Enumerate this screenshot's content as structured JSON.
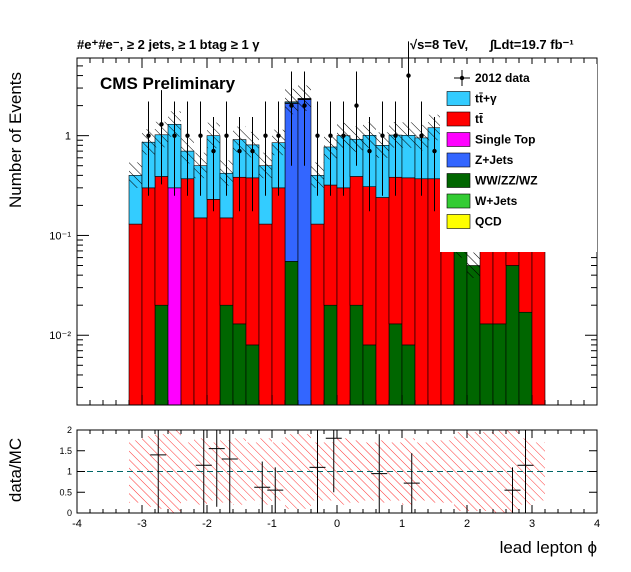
{
  "header": {
    "channel": "#e⁺#e⁻, ≥ 2 jets, ≥ 1 btag ≥ 1 γ",
    "energy": "√s=8 TeV,",
    "lumi": "∫Ldt=19.7 fb⁻¹",
    "cms_label": "CMS Preliminary"
  },
  "chart_data": [
    {
      "type": "bar",
      "stacked": true,
      "log_y": true,
      "xlabel": "",
      "ylabel": "Number of Events",
      "xlim": [
        -4,
        4
      ],
      "ylim": [
        0.002,
        6
      ],
      "x_ticks": [
        "-4",
        "-3",
        "-2",
        "-1",
        "0",
        "1",
        "2",
        "3",
        "4"
      ],
      "y_ticks": [
        "10⁻²",
        "10⁻¹",
        "1"
      ],
      "bin_edges_range": [
        -3.2,
        3.2
      ],
      "n_bins": 32,
      "series": [
        {
          "name": "W+Jets",
          "color": "#33cc33",
          "values": []
        },
        {
          "name": "QCD",
          "color": "#ffff00",
          "values": []
        },
        {
          "name": "WW/ZZ/WZ",
          "color": "#006600",
          "values": [
            0,
            0,
            0.02,
            0,
            0,
            0,
            0,
            0.02,
            0.013,
            0.008,
            0,
            0,
            0.055,
            0,
            0,
            0.02,
            0,
            0.02,
            0.008,
            0,
            0.013,
            0.008,
            0,
            0,
            0,
            0.08,
            0.05,
            0.013,
            0.013,
            0.05,
            0.017,
            0
          ]
        },
        {
          "name": "Z+Jets",
          "color": "#3366ff",
          "values": [
            0,
            0,
            0,
            0,
            0,
            0,
            0,
            0,
            0,
            0,
            0,
            0,
            2.05,
            2.3,
            0,
            0,
            0,
            0,
            0,
            0,
            0,
            0,
            0,
            0,
            0,
            0,
            0,
            0,
            0,
            0,
            0,
            0
          ]
        },
        {
          "name": "Single Top",
          "color": "#ff00ff",
          "values": [
            0,
            0,
            0,
            0.3,
            0,
            0,
            0,
            0,
            0,
            0,
            0,
            0,
            0,
            0,
            0,
            0,
            0,
            0,
            0,
            0,
            0,
            0,
            0,
            0,
            0,
            0,
            0,
            0,
            0,
            0,
            0,
            0
          ]
        },
        {
          "name": "tt̄",
          "color": "#ff0000",
          "values": [
            0.13,
            0.3,
            0.37,
            0,
            0.37,
            0.15,
            0.23,
            0.13,
            0.37,
            0.37,
            0.13,
            0.3,
            0.03,
            0.03,
            0.13,
            0.3,
            0.3,
            0.37,
            0.3,
            0.24,
            0.37,
            0.37,
            0.37,
            0.37,
            0.17,
            0,
            0,
            0.23,
            0.17,
            0.37,
            0.23,
            0.13
          ]
        },
        {
          "name": "tt̄+γ",
          "color": "#33ccff",
          "values": [
            0.27,
            0.56,
            0.63,
            1.0,
            0.33,
            0.35,
            0.77,
            0.27,
            0.53,
            0.43,
            0.37,
            0.55,
            0.05,
            0.03,
            0.27,
            0.45,
            0.7,
            0.53,
            0.7,
            0.56,
            0.63,
            0.63,
            0.58,
            0.83,
            0.23,
            0,
            0,
            0.47,
            0.43,
            0.73,
            0.37,
            0.27
          ]
        }
      ],
      "data_series": {
        "name": "2012 data",
        "points": [
          {
            "bin": 0,
            "y": 0
          },
          {
            "bin": 1,
            "y": 1.0
          },
          {
            "bin": 2,
            "y": 1.3
          },
          {
            "bin": 3,
            "y": 1.0
          },
          {
            "bin": 4,
            "y": 1.0
          },
          {
            "bin": 5,
            "y": 1.0
          },
          {
            "bin": 6,
            "y": 0.7
          },
          {
            "bin": 7,
            "y": 1.0
          },
          {
            "bin": 8,
            "y": 0.7
          },
          {
            "bin": 9,
            "y": 0.7
          },
          {
            "bin": 10,
            "y": 1.0
          },
          {
            "bin": 11,
            "y": 1.0
          },
          {
            "bin": 12,
            "y": 2.0
          },
          {
            "bin": 13,
            "y": 2.0
          },
          {
            "bin": 14,
            "y": 1.0
          },
          {
            "bin": 15,
            "y": 1.0
          },
          {
            "bin": 16,
            "y": 1.0
          },
          {
            "bin": 17,
            "y": 2.0
          },
          {
            "bin": 18,
            "y": 0.7
          },
          {
            "bin": 19,
            "y": 1.0
          },
          {
            "bin": 20,
            "y": 1.0
          },
          {
            "bin": 21,
            "y": 4.0
          },
          {
            "bin": 22,
            "y": 1.0
          },
          {
            "bin": 23,
            "y": 0.7
          },
          {
            "bin": 24,
            "y": 0
          },
          {
            "bin": 25,
            "y": 0
          },
          {
            "bin": 26,
            "y": 0
          },
          {
            "bin": 27,
            "y": 0
          },
          {
            "bin": 28,
            "y": 0
          },
          {
            "bin": 29,
            "y": 0
          },
          {
            "bin": 30,
            "y": 0
          },
          {
            "bin": 31,
            "y": 0
          }
        ]
      },
      "legend": {
        "placement": "top-right",
        "entries": [
          "2012 data",
          "tt̄+γ",
          "tt̄",
          "Single Top",
          "Z+Jets",
          "WW/ZZ/WZ",
          "W+Jets",
          "QCD"
        ]
      }
    },
    {
      "type": "scatter",
      "xlabel": "lead lepton ϕ",
      "ylabel": "data/MC",
      "xlim": [
        -4,
        4
      ],
      "ylim": [
        0,
        2
      ],
      "x_ticks": [
        "-4",
        "-3",
        "-2",
        "-1",
        "0",
        "1",
        "2",
        "3",
        "4"
      ],
      "y_ticks": [
        "0",
        "0.5",
        "1",
        "1.5",
        "2"
      ],
      "reference_line": 1,
      "band_color": "#ff3333",
      "band_halfwidth": [
        0.75,
        0.85,
        0.9,
        1.4,
        0.7,
        0.8,
        0.7,
        0.75,
        0.8,
        0.7,
        0.8,
        0.7,
        0.9,
        0.9,
        0.7,
        0.7,
        0.8,
        0.75,
        0.7,
        0.75,
        0.7,
        0.8,
        0.7,
        0.75,
        0.75,
        0.95,
        0.95,
        0.95,
        1.1,
        1.0,
        0.8,
        0.7
      ],
      "points": [
        {
          "x": -2.75,
          "y": 1.4,
          "err": 1.4
        },
        {
          "x": -2.05,
          "y": 1.15,
          "err": 1.15
        },
        {
          "x": -1.85,
          "y": 1.55,
          "err": 1.4
        },
        {
          "x": -1.65,
          "y": 1.3,
          "err": 1.3
        },
        {
          "x": -1.15,
          "y": 0.62,
          "err": 0.62
        },
        {
          "x": -0.95,
          "y": 0.55,
          "err": 0.55
        },
        {
          "x": -0.3,
          "y": 1.1,
          "err": 1.1
        },
        {
          "x": -0.05,
          "y": 1.8,
          "err": 1.3
        },
        {
          "x": 0.65,
          "y": 0.95,
          "err": 0.95
        },
        {
          "x": 1.15,
          "y": 0.72,
          "err": 0.72
        },
        {
          "x": 2.7,
          "y": 0.55,
          "err": 0.55
        },
        {
          "x": 2.9,
          "y": 1.15,
          "err": 1.15
        }
      ]
    }
  ]
}
